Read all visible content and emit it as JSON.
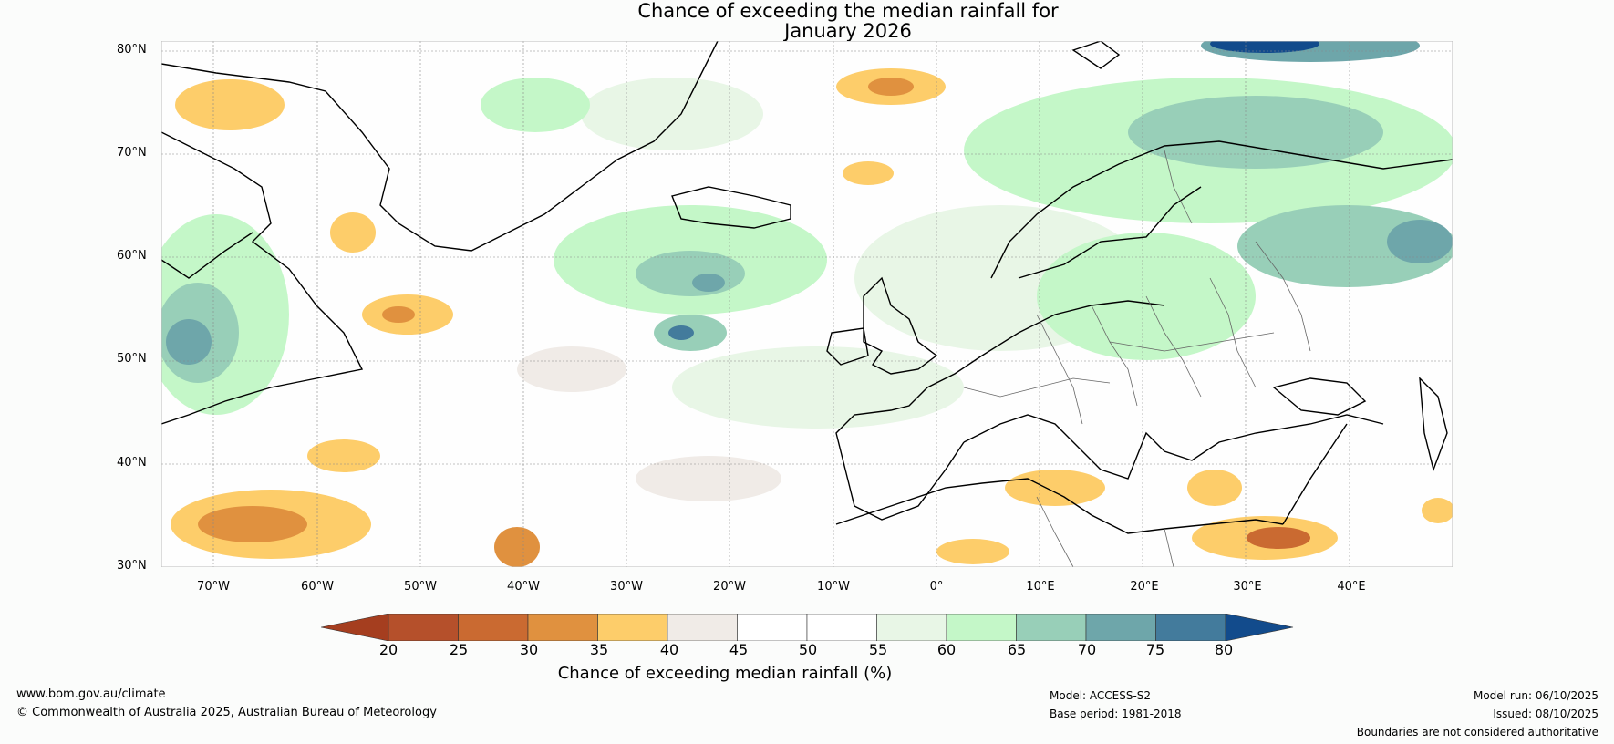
{
  "title_line1": "Chance of exceeding the median rainfall for",
  "title_line2": "January 2026",
  "lat_labels": [
    "80°N",
    "70°N",
    "60°N",
    "50°N",
    "40°N",
    "30°N"
  ],
  "lon_labels": [
    "70°W",
    "60°W",
    "50°W",
    "40°W",
    "30°W",
    "20°W",
    "10°W",
    "0°",
    "10°E",
    "20°E",
    "30°E",
    "40°E"
  ],
  "colorbar": {
    "label": "Chance of exceeding median rainfall (%)",
    "ticks": [
      "20",
      "25",
      "30",
      "35",
      "40",
      "45",
      "50",
      "55",
      "60",
      "65",
      "70",
      "75",
      "80"
    ],
    "colors": [
      "#a53e1f",
      "#b5502b",
      "#ca6a31",
      "#e0913f",
      "#fdcd6a",
      "#f0ebe7",
      "#ffffff",
      "#ffffff",
      "#e8f6e6",
      "#c4f7c8",
      "#98cfb8",
      "#6ea6aa",
      "#437b9c",
      "#124b8c"
    ]
  },
  "footer": {
    "url": "www.bom.gov.au/climate",
    "copyright": "© Commonwealth of Australia 2025, Australian Bureau of Meteorology",
    "model": "Model: ACCESS-S2",
    "base_period": "Base period: 1981-2018",
    "model_run": "Model run: 06/10/2025",
    "issued": "Issued: 08/10/2025",
    "disclaimer": "Boundaries are not considered authoritative"
  }
}
